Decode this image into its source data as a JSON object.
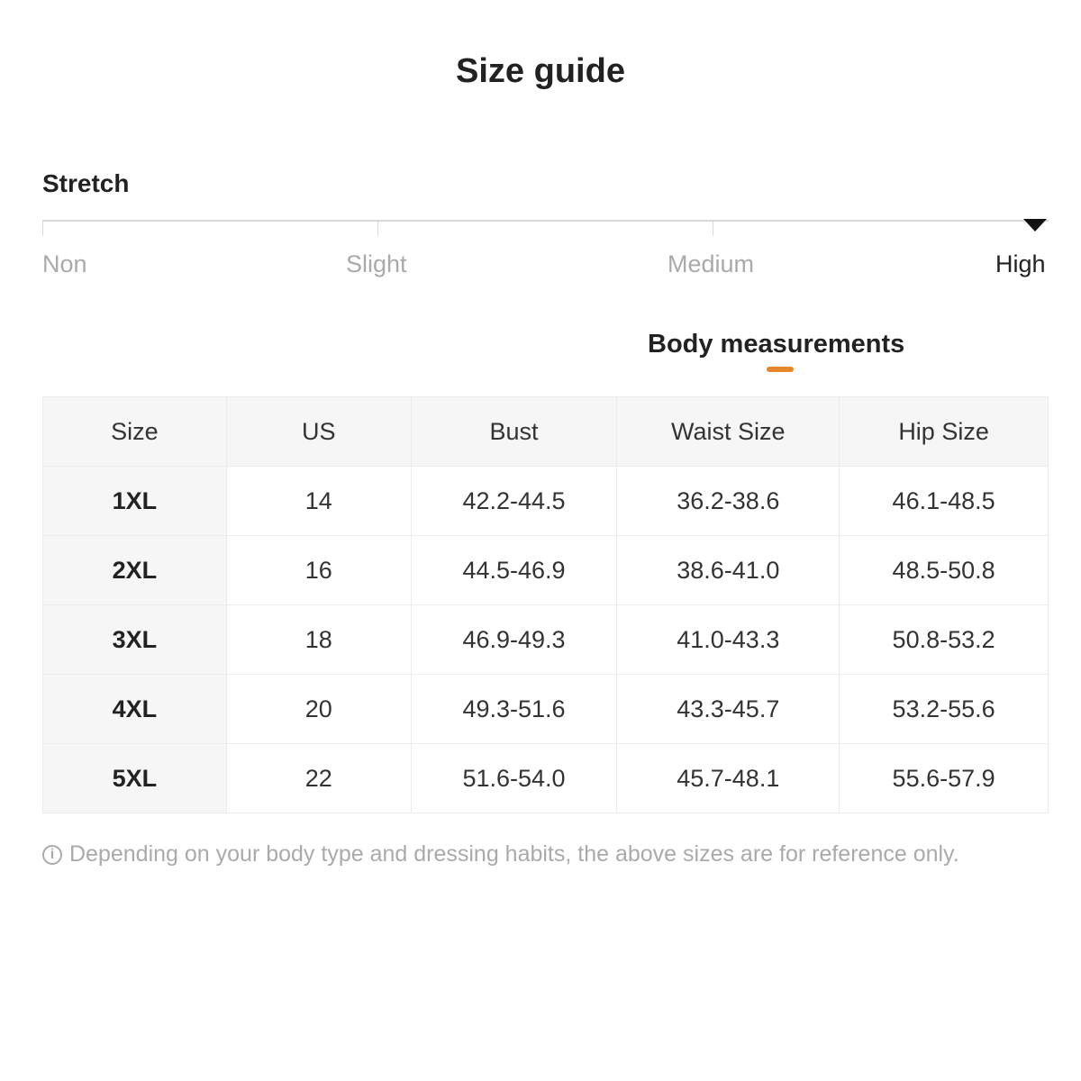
{
  "title": "Size guide",
  "stretch": {
    "label": "Stretch",
    "levels": [
      "Non",
      "Slight",
      "Medium",
      "High"
    ],
    "selected": "High"
  },
  "tab": {
    "label": "Body measurements",
    "accent": "#e8862a"
  },
  "table": {
    "headers": [
      "Size",
      "US",
      "Bust",
      "Waist Size",
      "Hip Size"
    ],
    "rows": [
      [
        "1XL",
        "14",
        "42.2-44.5",
        "36.2-38.6",
        "46.1-48.5"
      ],
      [
        "2XL",
        "16",
        "44.5-46.9",
        "38.6-41.0",
        "48.5-50.8"
      ],
      [
        "3XL",
        "18",
        "46.9-49.3",
        "41.0-43.3",
        "50.8-53.2"
      ],
      [
        "4XL",
        "20",
        "49.3-51.6",
        "43.3-45.7",
        "53.2-55.6"
      ],
      [
        "5XL",
        "22",
        "51.6-54.0",
        "45.7-48.1",
        "55.6-57.9"
      ]
    ]
  },
  "note": {
    "icon": "info-icon",
    "icon_glyph": "i",
    "text": "Depending on your body type and dressing habits, the above sizes are for reference only."
  }
}
